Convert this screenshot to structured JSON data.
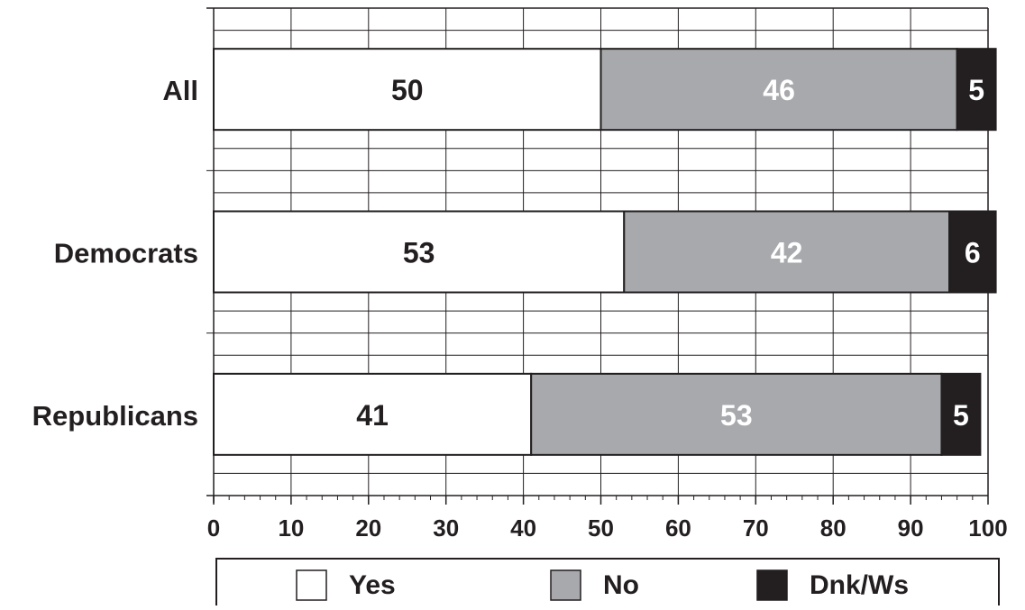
{
  "chart_data": {
    "type": "bar",
    "orientation": "horizontal",
    "stacked": true,
    "categories": [
      "All",
      "Democrats",
      "Republicans"
    ],
    "series": [
      {
        "name": "Yes",
        "values": [
          50,
          53,
          41
        ],
        "color": "#ffffff",
        "label_color": "#231f20"
      },
      {
        "name": "No",
        "values": [
          46,
          42,
          53
        ],
        "color": "#a7a9ac",
        "label_color": "#ffffff"
      },
      {
        "name": "Dnk/Ws",
        "values": [
          5,
          6,
          5
        ],
        "color": "#231f20",
        "label_color": "#ffffff"
      }
    ],
    "xlim": [
      0,
      100
    ],
    "x_ticks": [
      0,
      10,
      20,
      30,
      40,
      50,
      60,
      70,
      80,
      90,
      100
    ],
    "grid": true,
    "legend_position": "bottom",
    "title": "",
    "xlabel": "",
    "ylabel": ""
  }
}
